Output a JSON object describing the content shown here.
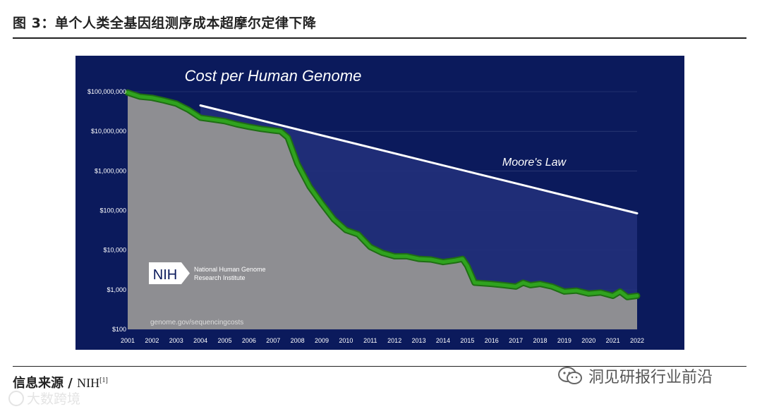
{
  "figure": {
    "title": "图 3：单个人类全基因组测序成本超摩尔定律下降"
  },
  "source": {
    "prefix": "信息来源 / ",
    "name": "NIH",
    "ref": "[1]"
  },
  "watermarks": {
    "right": "洞见研报行业前沿",
    "left": "大数跨境"
  },
  "logo": {
    "text": "NIH",
    "org_line1": "National Human Genome",
    "org_line2": "Research Institute"
  },
  "colors": {
    "background": "#0b1a5c",
    "gray_area": "#8e8e92",
    "trend_fill": "#21307a",
    "cost_line": "#2fa31e",
    "moore_line": "#ffffff"
  },
  "chart_data": {
    "type": "line",
    "title": "Cost per Human Genome",
    "url_note": "genome.gov/sequencingcosts",
    "y_scale": "log",
    "ylim": [
      100,
      100000000
    ],
    "y_ticks": [
      100,
      1000,
      10000,
      100000,
      1000000,
      10000000,
      100000000
    ],
    "y_tick_labels": [
      "$100",
      "$1,000",
      "$10,000",
      "$100,000",
      "$1,000,000",
      "$10,000,000",
      "$100,000,000"
    ],
    "x_ticks": [
      2001,
      2002,
      2003,
      2004,
      2005,
      2006,
      2007,
      2008,
      2009,
      2010,
      2011,
      2012,
      2013,
      2014,
      2015,
      2016,
      2017,
      2018,
      2019,
      2020,
      2021,
      2022
    ],
    "xlim": [
      2001,
      2022
    ],
    "series": [
      {
        "name": "Cost per Genome",
        "x": [
          2001.0,
          2001.5,
          2002.0,
          2002.5,
          2003.0,
          2003.5,
          2004.0,
          2004.5,
          2005.0,
          2005.5,
          2006.0,
          2006.5,
          2007.0,
          2007.3,
          2007.6,
          2008.0,
          2008.5,
          2009.0,
          2009.5,
          2010.0,
          2010.5,
          2011.0,
          2011.5,
          2012.0,
          2012.5,
          2013.0,
          2013.5,
          2014.0,
          2014.5,
          2014.8,
          2015.0,
          2015.3,
          2016.0,
          2016.5,
          2017.0,
          2017.3,
          2017.6,
          2018.0,
          2018.5,
          2019.0,
          2019.5,
          2020.0,
          2020.5,
          2021.0,
          2021.3,
          2021.6,
          2022.0
        ],
        "values": [
          95000000,
          75000000,
          70000000,
          60000000,
          50000000,
          35000000,
          22000000,
          20000000,
          18000000,
          15000000,
          13000000,
          11500000,
          10500000,
          10000000,
          7000000,
          1500000,
          400000,
          150000,
          60000,
          32000,
          25000,
          12000,
          8500,
          7000,
          7000,
          6000,
          5800,
          5000,
          5500,
          6000,
          4000,
          1500,
          1400,
          1300,
          1200,
          1500,
          1300,
          1400,
          1200,
          900,
          950,
          800,
          850,
          700,
          900,
          650,
          700
        ]
      },
      {
        "name": "Moore's Law",
        "x": [
          2004.0,
          2022.0
        ],
        "values": [
          45000000,
          85000
        ]
      }
    ]
  }
}
